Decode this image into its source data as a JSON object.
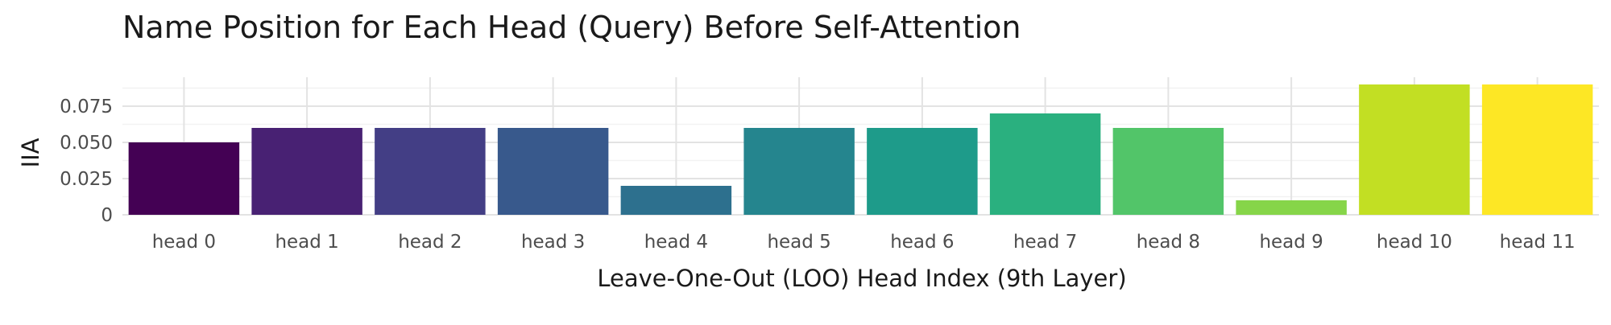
{
  "chart_data": {
    "type": "bar",
    "title": "Name Position for Each Head (Query) Before Self-Attention",
    "xlabel": "Leave-One-Out (LOO) Head Index (9th Layer)",
    "ylabel": "IIA",
    "categories": [
      "head 0",
      "head 1",
      "head 2",
      "head 3",
      "head 4",
      "head 5",
      "head 6",
      "head 7",
      "head 8",
      "head 9",
      "head 10",
      "head 11"
    ],
    "values": [
      0.05,
      0.06,
      0.06,
      0.06,
      0.02,
      0.06,
      0.06,
      0.07,
      0.06,
      0.01,
      0.09,
      0.09
    ],
    "colors": [
      "#440154",
      "#482173",
      "#433e85",
      "#38598c",
      "#2d708e",
      "#25858e",
      "#1e9b8a",
      "#2ab07f",
      "#52c569",
      "#86d549",
      "#c2df23",
      "#fde725"
    ],
    "ylim": [
      0,
      0.095
    ],
    "yticks": [
      0,
      0.025,
      0.05,
      0.075
    ],
    "ytick_labels": [
      "0",
      "0.025",
      "0.050",
      "0.075"
    ],
    "grid": true,
    "legend": "none"
  }
}
